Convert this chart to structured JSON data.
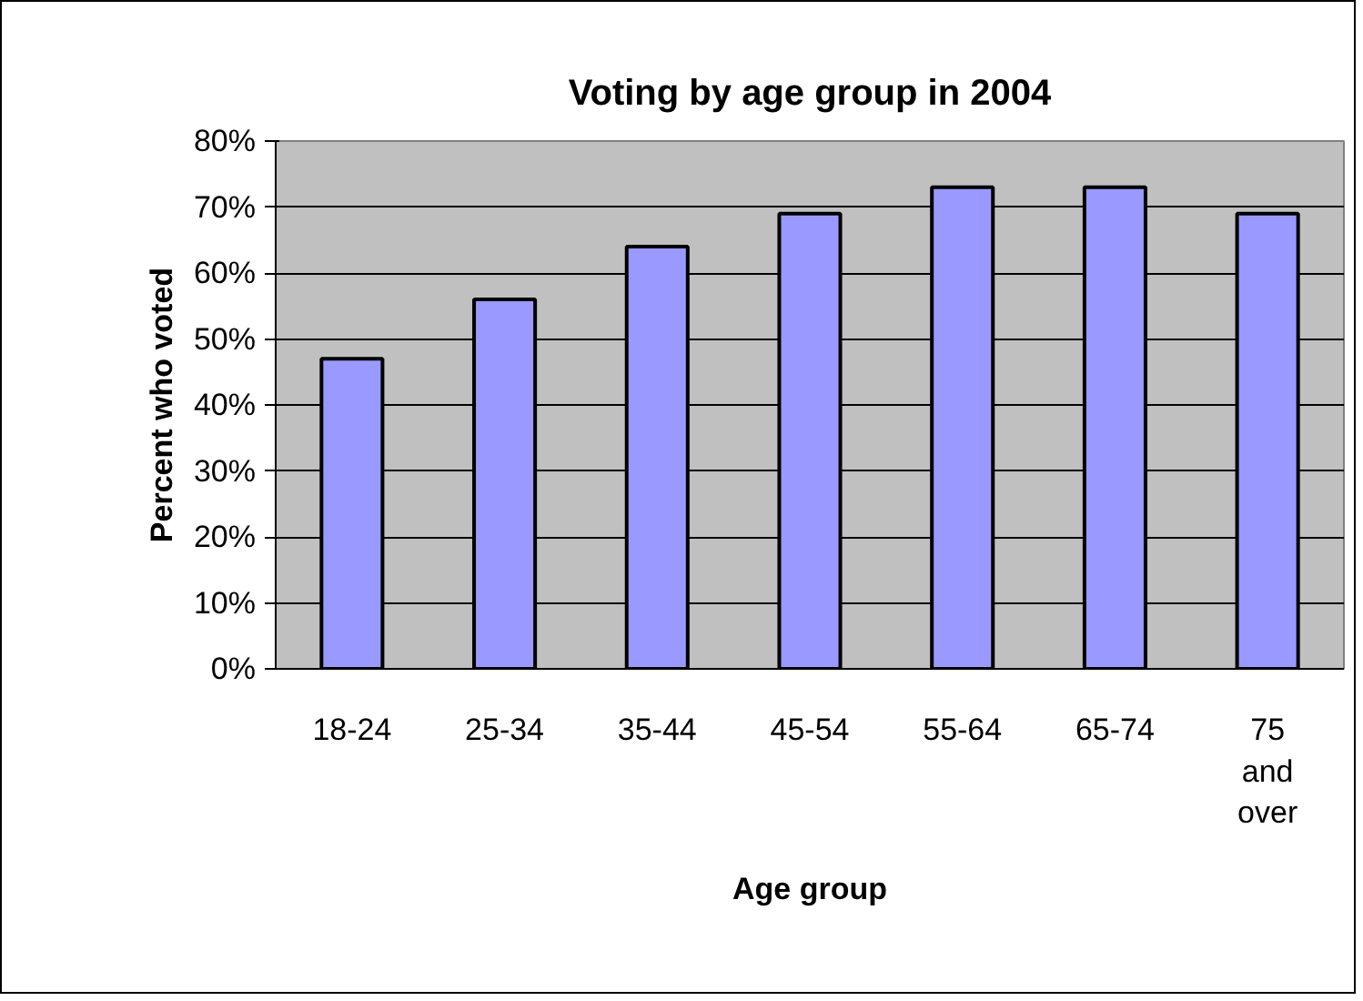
{
  "chart_data": {
    "type": "bar",
    "title": "Voting by age group in 2004",
    "xlabel": "Age group",
    "ylabel": "Percent who voted",
    "categories": [
      "18-24",
      "25-34",
      "35-44",
      "45-54",
      "55-64",
      "65-74",
      "75 and over"
    ],
    "values": [
      47,
      56,
      64,
      69,
      73,
      73,
      69
    ],
    "color": "#9999ff",
    "ylim": [
      0,
      80
    ],
    "yticks": [
      {
        "value": 0,
        "label": "0%"
      },
      {
        "value": 10,
        "label": "10%"
      },
      {
        "value": 20,
        "label": "20%"
      },
      {
        "value": 30,
        "label": "30%"
      },
      {
        "value": 40,
        "label": "40%"
      },
      {
        "value": 50,
        "label": "50%"
      },
      {
        "value": 60,
        "label": "60%"
      },
      {
        "value": 70,
        "label": "70%"
      },
      {
        "value": 80,
        "label": "80%"
      }
    ],
    "grid": "y"
  }
}
